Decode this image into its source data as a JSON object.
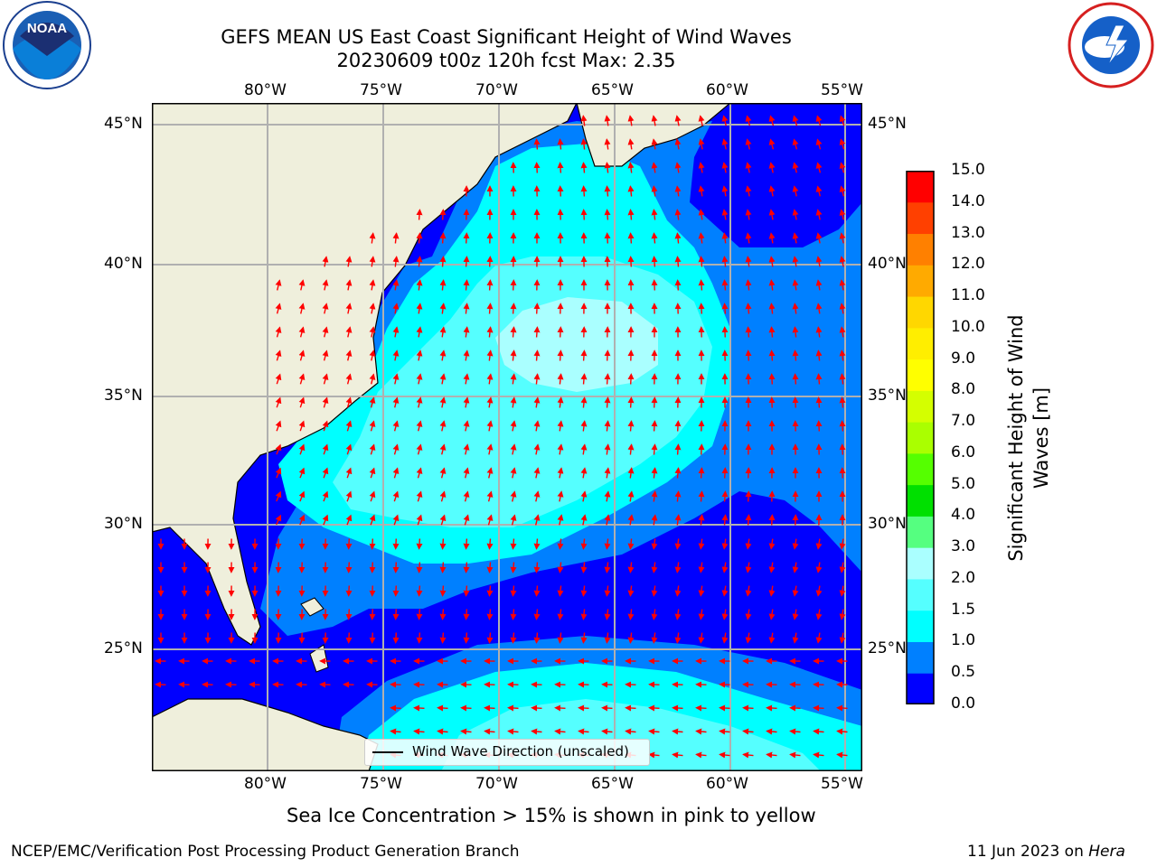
{
  "title": {
    "line1": "GEFS MEAN US East Coast Significant Height of Wind Waves",
    "line2": "20230609 t00z 120h fcst   Max: 2.35"
  },
  "map": {
    "lon_labels": [
      "80°W",
      "75°W",
      "70°W",
      "65°W",
      "60°W",
      "55°W"
    ],
    "lat_labels": [
      "45°N",
      "40°N",
      "35°N",
      "30°N",
      "25°N"
    ],
    "legend_label": "Wind Wave Direction (unscaled)",
    "colors": {
      "land": "#efefdc",
      "level_0_0p5": "#0000ff",
      "level_0p5_1": "#0080ff",
      "level_1_1p5": "#00ffff",
      "level_1p5_2": "#55ffff",
      "level_2_3": "#aaffff",
      "arrow": "#ff0000"
    }
  },
  "colorbar": {
    "label": "Significant Height of Wind Waves [m]",
    "ticks": [
      "0.0",
      "0.5",
      "1.0",
      "1.5",
      "2.0",
      "3.0",
      "4.0",
      "5.0",
      "6.0",
      "7.0",
      "8.0",
      "9.0",
      "10.0",
      "11.0",
      "12.0",
      "13.0",
      "14.0",
      "15.0"
    ],
    "colors": [
      "#0000ff",
      "#0080ff",
      "#00ffff",
      "#55ffff",
      "#aaffff",
      "#55ff80",
      "#00e000",
      "#55ff00",
      "#aaff00",
      "#d4ff00",
      "#ffff00",
      "#ffee00",
      "#ffd700",
      "#ffaa00",
      "#ff8000",
      "#ff4000",
      "#ff0000"
    ]
  },
  "captions": {
    "ice_note": "Sea Ice Concentration > 15% is shown in pink to yellow",
    "branch": "NCEP/EMC/Verification Post Processing Product Generation Branch",
    "date": "11 Jun 2023 on ",
    "machine": "Hera"
  },
  "logos": {
    "left": "NOAA",
    "right": "NATIONAL WEATHER SERVICE"
  }
}
